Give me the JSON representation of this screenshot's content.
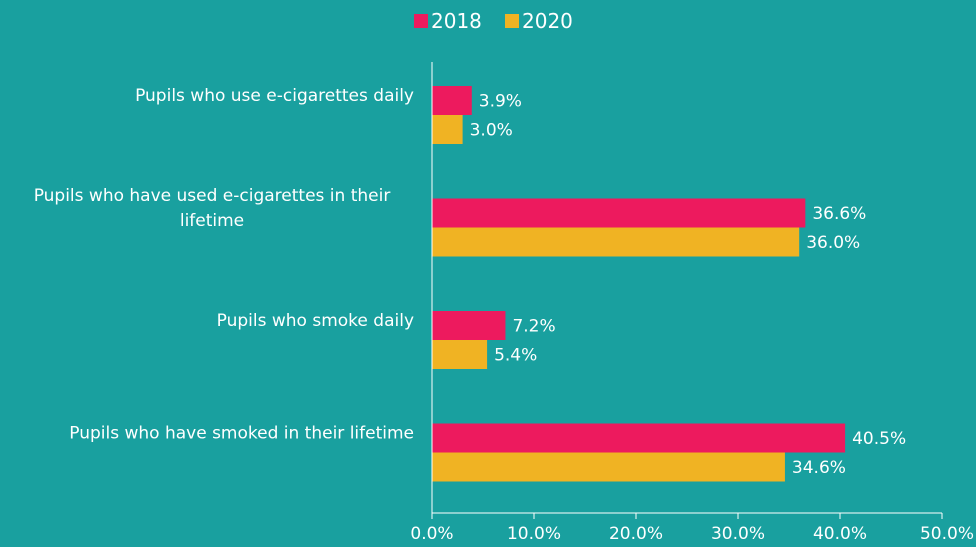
{
  "chart_data": {
    "type": "bar",
    "orientation": "horizontal",
    "categories": [
      "Pupils who use e-cigarettes daily",
      "Pupils who have used e-cigarettes in their lifetime",
      "Pupils who smoke daily",
      "Pupils who have smoked in their lifetime"
    ],
    "category_lines": [
      [
        "Pupils who use e-cigarettes daily"
      ],
      [
        "Pupils who have used e-cigarettes in their",
        "lifetime"
      ],
      [
        "Pupils who smoke daily"
      ],
      [
        "Pupils who have smoked in their lifetime"
      ]
    ],
    "series": [
      {
        "name": "2018",
        "color": "#ed1a5e",
        "values": [
          3.9,
          36.6,
          7.2,
          40.5
        ],
        "labels": [
          "3.9%",
          "36.6%",
          "7.2%",
          "40.5%"
        ]
      },
      {
        "name": "2020",
        "color": "#f0b323",
        "values": [
          3.0,
          36.0,
          5.4,
          34.6
        ],
        "labels": [
          "3.0%",
          "36.0%",
          "5.4%",
          "34.6%"
        ]
      }
    ],
    "xlim": [
      0,
      50
    ],
    "xticks": [
      0,
      10,
      20,
      30,
      40,
      50
    ],
    "xtick_labels": [
      "0.0%",
      "10.0%",
      "20.0%",
      "30.0%",
      "40.0%",
      "50.0%"
    ],
    "legend_position": "top-center",
    "grid": false
  }
}
